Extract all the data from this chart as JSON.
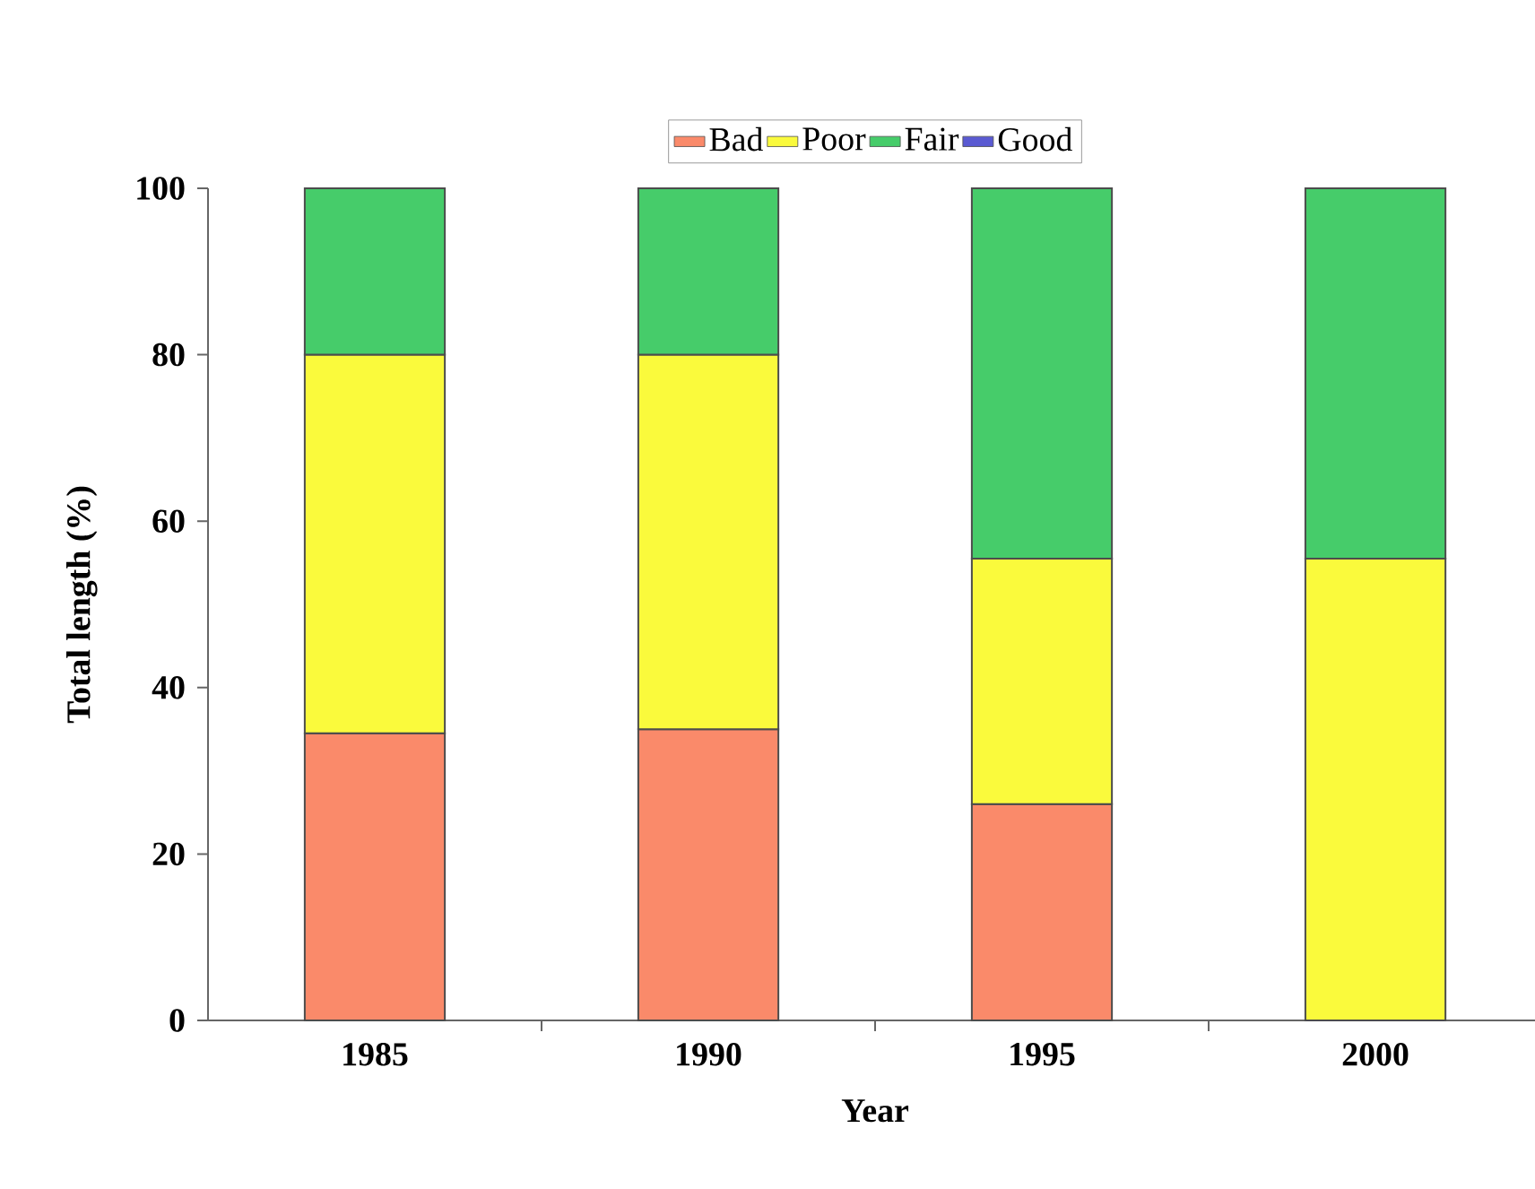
{
  "chart_data": {
    "type": "bar",
    "stacked": true,
    "xlabel": "Year",
    "ylabel": "Total length (%)",
    "categories": [
      "1985",
      "1990",
      "1995",
      "2000"
    ],
    "series": [
      {
        "name": "Bad",
        "color": "#fa8a6a",
        "values": [
          34.5,
          35,
          26,
          0
        ]
      },
      {
        "name": "Poor",
        "color": "#fafa3c",
        "values": [
          45.5,
          45,
          29.5,
          55.5
        ]
      },
      {
        "name": "Fair",
        "color": "#46cc6a",
        "values": [
          20,
          20,
          44.5,
          44.5
        ]
      },
      {
        "name": "Good",
        "color": "#5a5ad2",
        "values": [
          0,
          0,
          0,
          0
        ]
      }
    ],
    "ylim": [
      0,
      100
    ],
    "yticks": [
      0,
      20,
      40,
      60,
      80,
      100
    ],
    "legend": "top",
    "grid": false
  }
}
